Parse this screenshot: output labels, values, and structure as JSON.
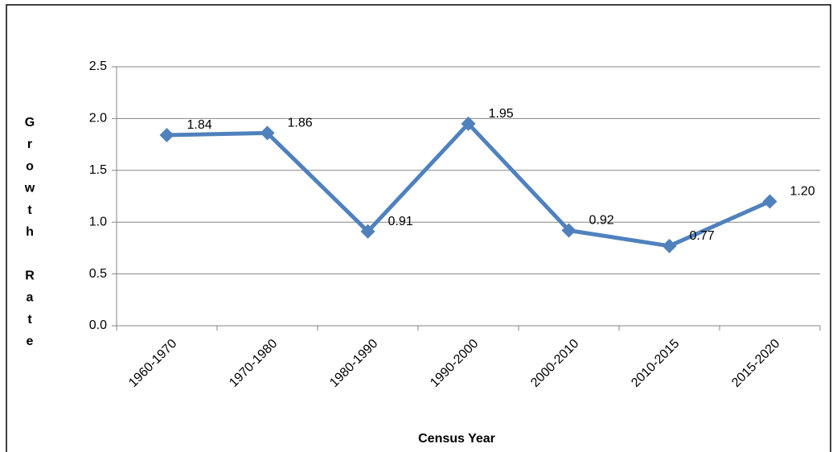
{
  "chart_data": {
    "type": "line",
    "x_label": "Census Year",
    "y_label": "Growth Rate",
    "categories": [
      "1960-1970",
      "1970-1980",
      "1980-1990",
      "1990-2000",
      "2000-2010",
      "2010-2015",
      "2015-2020"
    ],
    "values": [
      1.84,
      1.86,
      0.91,
      1.95,
      0.92,
      0.77,
      1.2
    ],
    "value_labels": [
      "1.84",
      "1.86",
      "0.91",
      "1.95",
      "0.92",
      "0.77",
      "1.20"
    ],
    "color": "#4f81bd",
    "ylim": [
      0,
      2.5
    ],
    "yticks": [
      {
        "value": 0,
        "label": "0.0"
      },
      0.5,
      {
        "value": 1,
        "label": "1.0"
      },
      1.5,
      {
        "value": 2,
        "label": "2.0"
      },
      2.5
    ],
    "grid": true
  }
}
